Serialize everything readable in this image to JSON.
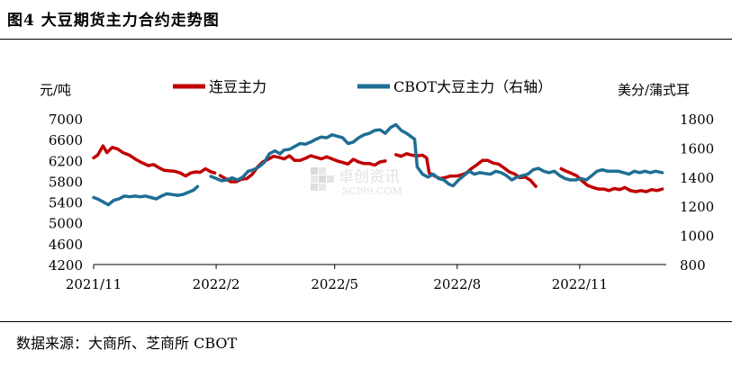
{
  "figure_title": "图4 大豆期货主力合约走势图",
  "source": "数据来源：大商所、芝商所 CBOT",
  "watermark": {
    "brand": "卓创资讯",
    "site": "SCI99.COM"
  },
  "colors": {
    "left_series": "#C00000",
    "right_series": "#1F6E94",
    "axis": "#000000",
    "watermark": "#C9C9C9"
  },
  "chart_data": {
    "type": "line",
    "left_unit": "元/吨",
    "right_unit": "美分/蒲式耳",
    "y_left": {
      "min": 4200,
      "max": 7000,
      "ticks": [
        "7000",
        "6600",
        "6200",
        "5800",
        "5400",
        "5000",
        "4600",
        "4200"
      ]
    },
    "y_right": {
      "min": 800,
      "max": 1800,
      "ticks": [
        "1800",
        "1600",
        "1400",
        "1200",
        "1000",
        "800"
      ]
    },
    "x_range": [
      "2021-11-01",
      "2023-01-05"
    ],
    "x_ticks": [
      {
        "date": "2021-11-01",
        "label": "2021/11"
      },
      {
        "date": "2022-02-01",
        "label": "2022/2"
      },
      {
        "date": "2022-05-01",
        "label": "2022/5"
      },
      {
        "date": "2022-08-01",
        "label": "2022/8"
      },
      {
        "date": "2022-11-01",
        "label": "2022/11"
      }
    ],
    "series": [
      {
        "name": "连豆主力",
        "axis": "left",
        "segments": [
          [
            [
              "2021-11-01",
              6250
            ],
            [
              "2021-11-04",
              6300
            ],
            [
              "2021-11-08",
              6480
            ],
            [
              "2021-11-11",
              6350
            ],
            [
              "2021-11-15",
              6450
            ],
            [
              "2021-11-19",
              6420
            ],
            [
              "2021-11-23",
              6350
            ],
            [
              "2021-11-28",
              6300
            ],
            [
              "2021-12-02",
              6230
            ],
            [
              "2021-12-07",
              6160
            ],
            [
              "2021-12-12",
              6100
            ],
            [
              "2021-12-16",
              6120
            ],
            [
              "2021-12-20",
              6060
            ],
            [
              "2021-12-24",
              6010
            ],
            [
              "2021-12-28",
              6000
            ],
            [
              "2022-01-01",
              5990
            ],
            [
              "2022-01-05",
              5960
            ],
            [
              "2022-01-09",
              5900
            ],
            [
              "2022-01-13",
              5960
            ],
            [
              "2022-01-17",
              5980
            ],
            [
              "2022-01-20",
              5970
            ],
            [
              "2022-01-24",
              6040
            ],
            [
              "2022-01-28",
              5980
            ],
            [
              "2022-01-31",
              5960
            ]
          ],
          [
            [
              "2022-02-04",
              5910
            ],
            [
              "2022-02-08",
              5850
            ],
            [
              "2022-02-12",
              5790
            ],
            [
              "2022-02-16",
              5790
            ],
            [
              "2022-02-20",
              5840
            ],
            [
              "2022-02-24",
              5850
            ],
            [
              "2022-02-28",
              5930
            ],
            [
              "2022-03-04",
              6070
            ],
            [
              "2022-03-08",
              6170
            ],
            [
              "2022-03-12",
              6220
            ],
            [
              "2022-03-16",
              6280
            ],
            [
              "2022-03-20",
              6260
            ],
            [
              "2022-03-24",
              6230
            ],
            [
              "2022-03-28",
              6290
            ],
            [
              "2022-04-01",
              6200
            ],
            [
              "2022-04-05",
              6200
            ],
            [
              "2022-04-09",
              6240
            ],
            [
              "2022-04-13",
              6290
            ],
            [
              "2022-04-17",
              6260
            ],
            [
              "2022-04-21",
              6230
            ],
            [
              "2022-04-25",
              6270
            ],
            [
              "2022-04-29",
              6230
            ],
            [
              "2022-05-03",
              6190
            ],
            [
              "2022-05-07",
              6160
            ],
            [
              "2022-05-11",
              6130
            ],
            [
              "2022-05-15",
              6220
            ],
            [
              "2022-05-19",
              6170
            ],
            [
              "2022-05-23",
              6140
            ],
            [
              "2022-05-27",
              6140
            ],
            [
              "2022-05-31",
              6110
            ],
            [
              "2022-06-04",
              6170
            ],
            [
              "2022-06-08",
              6190
            ]
          ],
          [
            [
              "2022-06-16",
              6310
            ],
            [
              "2022-06-20",
              6280
            ],
            [
              "2022-06-24",
              6330
            ],
            [
              "2022-06-28",
              6300
            ],
            [
              "2022-07-02",
              6290
            ],
            [
              "2022-07-06",
              6300
            ],
            [
              "2022-07-09",
              6250
            ],
            [
              "2022-07-11",
              5960
            ],
            [
              "2022-07-15",
              5900
            ],
            [
              "2022-07-19",
              5850
            ],
            [
              "2022-07-23",
              5870
            ],
            [
              "2022-07-27",
              5900
            ],
            [
              "2022-08-01",
              5900
            ],
            [
              "2022-08-04",
              5920
            ],
            [
              "2022-08-08",
              5960
            ],
            [
              "2022-08-12",
              6050
            ],
            [
              "2022-08-16",
              6120
            ],
            [
              "2022-08-20",
              6200
            ],
            [
              "2022-08-24",
              6200
            ],
            [
              "2022-08-28",
              6150
            ],
            [
              "2022-09-01",
              6130
            ],
            [
              "2022-09-05",
              6060
            ],
            [
              "2022-09-09",
              5980
            ],
            [
              "2022-09-13",
              5940
            ],
            [
              "2022-09-17",
              5870
            ],
            [
              "2022-09-21",
              5880
            ],
            [
              "2022-09-25",
              5820
            ],
            [
              "2022-09-29",
              5700
            ]
          ],
          [
            [
              "2022-10-18",
              6040
            ],
            [
              "2022-10-22",
              5990
            ],
            [
              "2022-10-26",
              5950
            ],
            [
              "2022-10-30",
              5900
            ],
            [
              "2022-11-03",
              5800
            ],
            [
              "2022-11-07",
              5720
            ],
            [
              "2022-11-11",
              5680
            ],
            [
              "2022-11-15",
              5650
            ],
            [
              "2022-11-19",
              5650
            ],
            [
              "2022-11-23",
              5620
            ],
            [
              "2022-11-27",
              5660
            ],
            [
              "2022-12-01",
              5640
            ],
            [
              "2022-12-05",
              5680
            ],
            [
              "2022-12-09",
              5620
            ],
            [
              "2022-12-13",
              5600
            ],
            [
              "2022-12-17",
              5620
            ],
            [
              "2022-12-21",
              5600
            ],
            [
              "2022-12-25",
              5640
            ],
            [
              "2022-12-29",
              5620
            ],
            [
              "2023-01-02",
              5650
            ]
          ]
        ]
      },
      {
        "name": "CBOT大豆主力（右轴）",
        "axis": "right",
        "segments": [
          [
            [
              "2021-11-01",
              1260
            ],
            [
              "2021-11-04",
              1250
            ],
            [
              "2021-11-08",
              1230
            ],
            [
              "2021-11-12",
              1210
            ],
            [
              "2021-11-16",
              1240
            ],
            [
              "2021-11-20",
              1250
            ],
            [
              "2021-11-24",
              1270
            ],
            [
              "2021-11-28",
              1265
            ],
            [
              "2021-12-02",
              1270
            ],
            [
              "2021-12-06",
              1265
            ],
            [
              "2021-12-10",
              1270
            ],
            [
              "2021-12-14",
              1260
            ],
            [
              "2021-12-18",
              1250
            ],
            [
              "2021-12-22",
              1270
            ],
            [
              "2021-12-26",
              1285
            ],
            [
              "2021-12-30",
              1280
            ],
            [
              "2022-01-03",
              1275
            ],
            [
              "2022-01-07",
              1280
            ],
            [
              "2022-01-11",
              1295
            ],
            [
              "2022-01-15",
              1310
            ],
            [
              "2022-01-18",
              1335
            ]
          ],
          [
            [
              "2022-01-28",
              1405
            ],
            [
              "2022-02-01",
              1390
            ],
            [
              "2022-02-05",
              1375
            ],
            [
              "2022-02-09",
              1380
            ],
            [
              "2022-02-13",
              1395
            ],
            [
              "2022-02-17",
              1380
            ],
            [
              "2022-02-21",
              1400
            ],
            [
              "2022-02-25",
              1440
            ],
            [
              "2022-03-01",
              1450
            ],
            [
              "2022-03-05",
              1470
            ],
            [
              "2022-03-09",
              1500
            ],
            [
              "2022-03-13",
              1560
            ],
            [
              "2022-03-17",
              1580
            ],
            [
              "2022-03-21",
              1560
            ],
            [
              "2022-03-24",
              1585
            ],
            [
              "2022-03-28",
              1590
            ],
            [
              "2022-04-01",
              1610
            ],
            [
              "2022-04-05",
              1630
            ],
            [
              "2022-04-09",
              1625
            ],
            [
              "2022-04-13",
              1640
            ],
            [
              "2022-04-17",
              1660
            ],
            [
              "2022-04-21",
              1675
            ],
            [
              "2022-04-25",
              1670
            ],
            [
              "2022-04-29",
              1690
            ],
            [
              "2022-05-03",
              1680
            ],
            [
              "2022-05-07",
              1670
            ],
            [
              "2022-05-11",
              1630
            ],
            [
              "2022-05-15",
              1640
            ],
            [
              "2022-05-19",
              1670
            ],
            [
              "2022-05-23",
              1690
            ],
            [
              "2022-05-27",
              1700
            ],
            [
              "2022-05-31",
              1720
            ],
            [
              "2022-06-04",
              1725
            ],
            [
              "2022-06-08",
              1700
            ],
            [
              "2022-06-12",
              1740
            ],
            [
              "2022-06-16",
              1760
            ],
            [
              "2022-06-20",
              1720
            ],
            [
              "2022-06-24",
              1700
            ],
            [
              "2022-06-27",
              1680
            ],
            [
              "2022-06-30",
              1660
            ],
            [
              "2022-07-02",
              1470
            ],
            [
              "2022-07-06",
              1420
            ],
            [
              "2022-07-10",
              1400
            ],
            [
              "2022-07-14",
              1420
            ],
            [
              "2022-07-18",
              1390
            ],
            [
              "2022-07-22",
              1380
            ],
            [
              "2022-07-26",
              1350
            ],
            [
              "2022-07-29",
              1340
            ],
            [
              "2022-08-02",
              1380
            ],
            [
              "2022-08-06",
              1410
            ],
            [
              "2022-08-10",
              1440
            ],
            [
              "2022-08-14",
              1420
            ],
            [
              "2022-08-18",
              1430
            ],
            [
              "2022-08-22",
              1425
            ],
            [
              "2022-08-26",
              1420
            ],
            [
              "2022-08-30",
              1440
            ],
            [
              "2022-09-03",
              1430
            ],
            [
              "2022-09-07",
              1410
            ],
            [
              "2022-09-11",
              1380
            ],
            [
              "2022-09-15",
              1400
            ],
            [
              "2022-09-19",
              1410
            ],
            [
              "2022-09-23",
              1420
            ],
            [
              "2022-09-27",
              1450
            ],
            [
              "2022-10-01",
              1460
            ],
            [
              "2022-10-05",
              1440
            ],
            [
              "2022-10-09",
              1430
            ],
            [
              "2022-10-13",
              1440
            ],
            [
              "2022-10-17",
              1410
            ],
            [
              "2022-10-21",
              1390
            ],
            [
              "2022-10-25",
              1380
            ],
            [
              "2022-10-29",
              1380
            ],
            [
              "2022-11-02",
              1390
            ],
            [
              "2022-11-06",
              1380
            ],
            [
              "2022-11-10",
              1410
            ],
            [
              "2022-11-14",
              1440
            ],
            [
              "2022-11-18",
              1450
            ],
            [
              "2022-11-22",
              1440
            ],
            [
              "2022-11-26",
              1440
            ],
            [
              "2022-11-30",
              1440
            ],
            [
              "2022-12-04",
              1430
            ],
            [
              "2022-12-08",
              1420
            ],
            [
              "2022-12-12",
              1440
            ],
            [
              "2022-12-16",
              1430
            ],
            [
              "2022-12-20",
              1440
            ],
            [
              "2022-12-24",
              1430
            ],
            [
              "2022-12-28",
              1440
            ],
            [
              "2023-01-02",
              1430
            ]
          ]
        ]
      }
    ]
  }
}
